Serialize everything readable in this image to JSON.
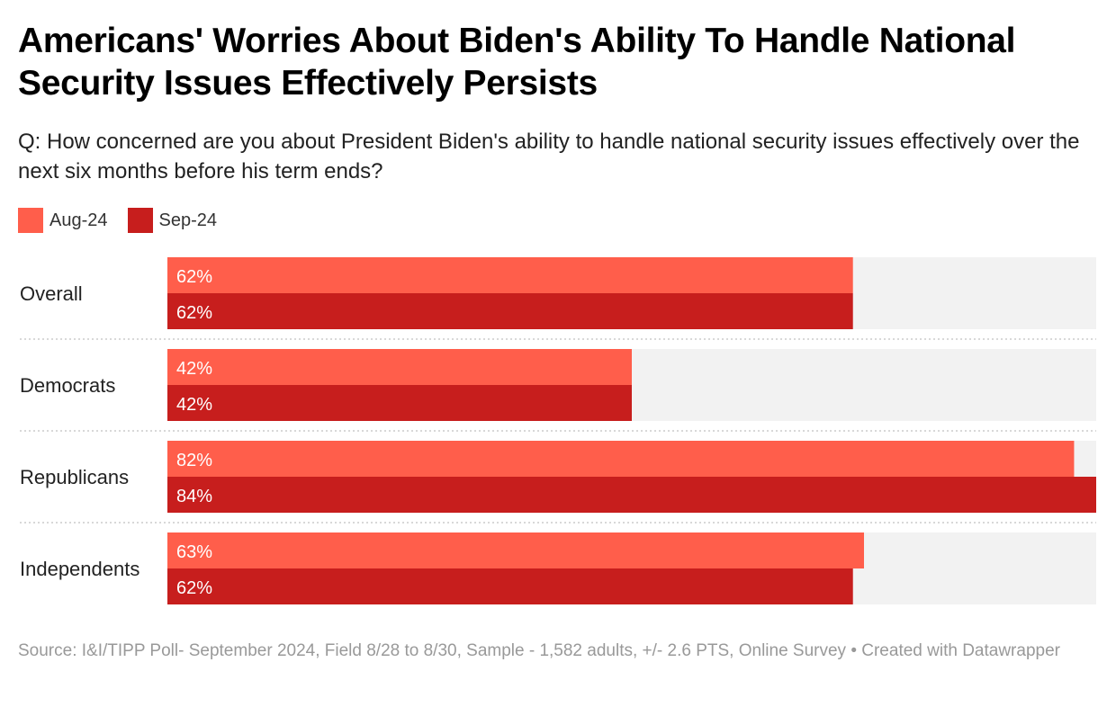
{
  "header": {
    "title": "Americans' Worries About Biden's Ability To Handle National Security Issues Effectively Persists",
    "subtitle": "Q: How concerned are you about President Biden's ability to handle national security issues effectively over the next six months before his term ends?"
  },
  "colors": {
    "aug": "#ff5e4b",
    "sep": "#c71e1d",
    "track": "#f2f2f2",
    "divider": "#cccccc"
  },
  "chart_data": {
    "type": "bar",
    "orientation": "horizontal",
    "title": "Americans' Worries About Biden's Ability To Handle National Security Issues Effectively Persists",
    "categories": [
      "Overall",
      "Democrats",
      "Republicans",
      "Independents"
    ],
    "series": [
      {
        "name": "Aug-24",
        "values": [
          62,
          42,
          82,
          63
        ],
        "labels": [
          "62%",
          "42%",
          "82%",
          "63%"
        ]
      },
      {
        "name": "Sep-24",
        "values": [
          62,
          42,
          84,
          62
        ],
        "labels": [
          "62%",
          "42%",
          "84%",
          "62%"
        ]
      }
    ],
    "xlim": [
      0,
      84
    ],
    "legend": "top-left",
    "value_format": "percent"
  },
  "footer": {
    "text": "Source: I&I/TIPP Poll- September 2024, Field 8/28 to 8/30, Sample - 1,582 adults, +/- 2.6 PTS, Online Survey • Created with Datawrapper"
  }
}
